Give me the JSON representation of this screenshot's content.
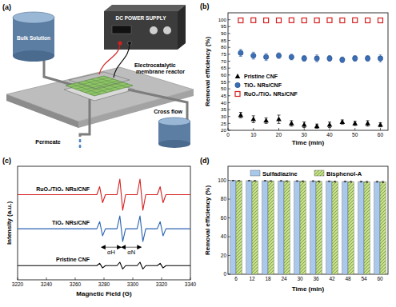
{
  "diagram": {
    "title": "(a)",
    "labels": {
      "bulk_solution": "Bulk Solution",
      "power_supply": "DC POWER SUPPLY",
      "reactor": "Electrocatalytic membrane reactor",
      "permeate": "Permeate",
      "cross_flow": "Cross flow"
    }
  },
  "chart_data": [
    {
      "type": "scatter",
      "title": "(b)",
      "x_label": "Time (min)",
      "y_label": "Removal efficiency (%)",
      "x": [
        5,
        10,
        15,
        20,
        25,
        30,
        35,
        40,
        45,
        50,
        55,
        60
      ],
      "xlim": [
        0,
        63
      ],
      "xticks": [
        0,
        10,
        20,
        30,
        40,
        50,
        60
      ],
      "ylim": [
        20,
        105
      ],
      "yticks": [
        20,
        25,
        30,
        35,
        40,
        45,
        50,
        55,
        60,
        65,
        70,
        75,
        80,
        85,
        90,
        95,
        100
      ],
      "legend": "left",
      "series": [
        {
          "name": "Pristine CNF",
          "color": "#000000",
          "marker": "triangle",
          "values": [
            31,
            28,
            27,
            28,
            25,
            24,
            23,
            24,
            26,
            25,
            25,
            24
          ],
          "errors": [
            2,
            2.5,
            2,
            3,
            2,
            2,
            1.5,
            2,
            1.5,
            1.5,
            2,
            1.5
          ]
        },
        {
          "name": "TiO₂ NRs/CNF",
          "color": "#3a6fb8",
          "marker": "circle",
          "values": [
            76,
            74,
            73,
            74,
            73,
            72,
            72,
            72,
            71,
            72,
            72,
            72
          ],
          "errors": [
            2.5,
            2.5,
            2.5,
            2,
            2,
            2,
            2.5,
            2,
            2,
            2,
            2,
            2.5
          ]
        },
        {
          "name": "RuO₂/TiO₂ NRs/CNF",
          "color": "#d42020",
          "marker": "open-square",
          "values": [
            99.5,
            99.6,
            99.5,
            99.5,
            99.6,
            99.5,
            99.5,
            99.6,
            99.5,
            99.6,
            99.5,
            99.5
          ],
          "errors": [
            0.5,
            0.5,
            0.5,
            0.5,
            0.5,
            0.5,
            0.5,
            0.5,
            0.5,
            0.5,
            0.5,
            0.5
          ]
        }
      ]
    },
    {
      "type": "line",
      "title": "(c)",
      "x_label": "Magnetic Field (G)",
      "y_label": "Intensity (a.u.)",
      "x": [
        3220,
        3275,
        3277,
        3279,
        3281,
        3289,
        3291,
        3293,
        3295,
        3303,
        3305,
        3307,
        3309,
        3317,
        3319,
        3321,
        3323,
        3340
      ],
      "xlim": [
        3220,
        3340
      ],
      "xticks": [
        3220,
        3240,
        3260,
        3280,
        3300,
        3320,
        3340
      ],
      "ylim": [
        0,
        4
      ],
      "tick_labels": "x",
      "series": [
        {
          "name": "RuO₂/TiO₂ NRs/CNF",
          "color": "#d42020",
          "values": [
            3.0,
            3.0,
            3.28,
            2.72,
            3.0,
            3.0,
            3.55,
            2.45,
            3.0,
            3.0,
            3.55,
            2.45,
            3.0,
            3.0,
            3.28,
            2.72,
            3.0,
            3.0
          ]
        },
        {
          "name": "TiO₂ NRs/CNF",
          "color": "#2b63b0",
          "values": [
            1.8,
            1.8,
            2.05,
            1.55,
            1.8,
            1.8,
            2.25,
            1.35,
            1.8,
            1.8,
            2.25,
            1.35,
            1.8,
            1.8,
            2.05,
            1.55,
            1.8,
            1.8
          ]
        },
        {
          "name": "Pristine CNF",
          "color": "#000000",
          "values": [
            0.5,
            0.5,
            0.58,
            0.42,
            0.5,
            0.5,
            0.62,
            0.38,
            0.5,
            0.5,
            0.62,
            0.38,
            0.5,
            0.5,
            0.58,
            0.42,
            0.5,
            0.5
          ]
        }
      ],
      "annotations": [
        {
          "text": "αH",
          "x1": 3278,
          "x2": 3292,
          "y": 1.15
        },
        {
          "text": "αN",
          "x1": 3292,
          "x2": 3306,
          "y": 1.15
        }
      ]
    },
    {
      "type": "bar",
      "title": "(d)",
      "x_label": "Time (min)",
      "y_label": "Removal efficiency (%)",
      "categories": [
        "6",
        "12",
        "18",
        "24",
        "30",
        "36",
        "42",
        "48",
        "54",
        "60"
      ],
      "ylim": [
        0,
        115
      ],
      "yticks": [
        0,
        20,
        40,
        60,
        80,
        100
      ],
      "legend": "top",
      "series": [
        {
          "name": "Sulfadiazine",
          "color": "#a9c9ea",
          "values": [
            99.8,
            99.7,
            99.6,
            99.5,
            99.3,
            99.2,
            99.0,
            98.8,
            98.7,
            98.6
          ],
          "errors": [
            0.3,
            0.3,
            0.4,
            0.4,
            0.4,
            0.5,
            0.4,
            0.5,
            0.5,
            0.5
          ]
        },
        {
          "name": "Bisphenol-A",
          "color": "#c6e08c",
          "values": [
            99.6,
            99.5,
            99.3,
            99.2,
            99.0,
            98.9,
            98.7,
            98.5,
            98.4,
            98.3
          ],
          "errors": [
            0.3,
            0.4,
            0.4,
            0.4,
            0.5,
            0.5,
            0.5,
            0.5,
            0.6,
            0.6
          ]
        }
      ]
    }
  ]
}
